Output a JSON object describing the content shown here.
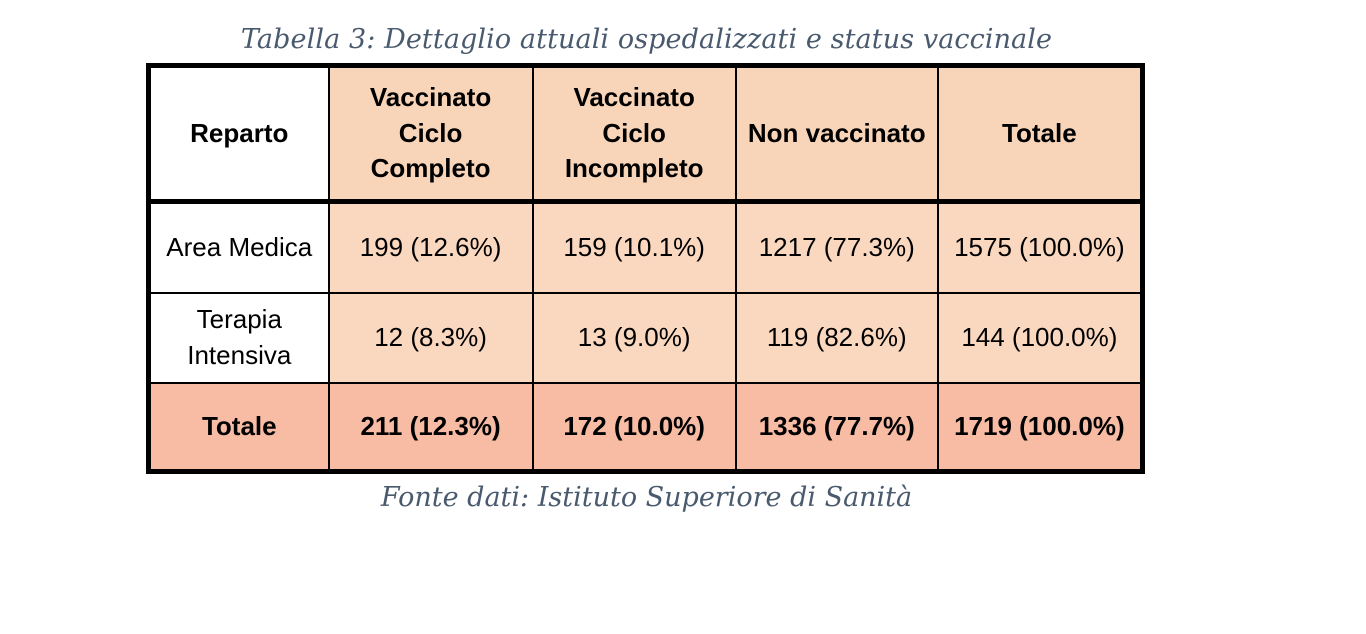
{
  "caption": "Tabella 3: Dettaglio attuali ospedalizzati e status vaccinale",
  "source": "Fonte dati: Istituto Superiore di Sanità",
  "table": {
    "headers": [
      "Reparto",
      "Vaccinato Ciclo Completo",
      "Vaccinato Ciclo Incompleto",
      "Non vaccinato",
      "Totale"
    ],
    "rows": [
      [
        "Area Medica",
        "199 (12.6%)",
        "159 (10.1%)",
        "1217 (77.3%)",
        "1575 (100.0%)"
      ],
      [
        "Terapia Intensiva",
        "12 (8.3%)",
        "13 (9.0%)",
        "119 (82.6%)",
        "144 (100.0%)"
      ]
    ],
    "total_row": [
      "Totale",
      "211 (12.3%)",
      "172 (10.0%)",
      "1336 (77.7%)",
      "1719 (100.0%)"
    ]
  },
  "colors": {
    "header_fill": "#f8d5b9",
    "body_fill": "#fad8c0",
    "total_fill": "#f8bba3",
    "caption_text": "#4a5a6e"
  }
}
